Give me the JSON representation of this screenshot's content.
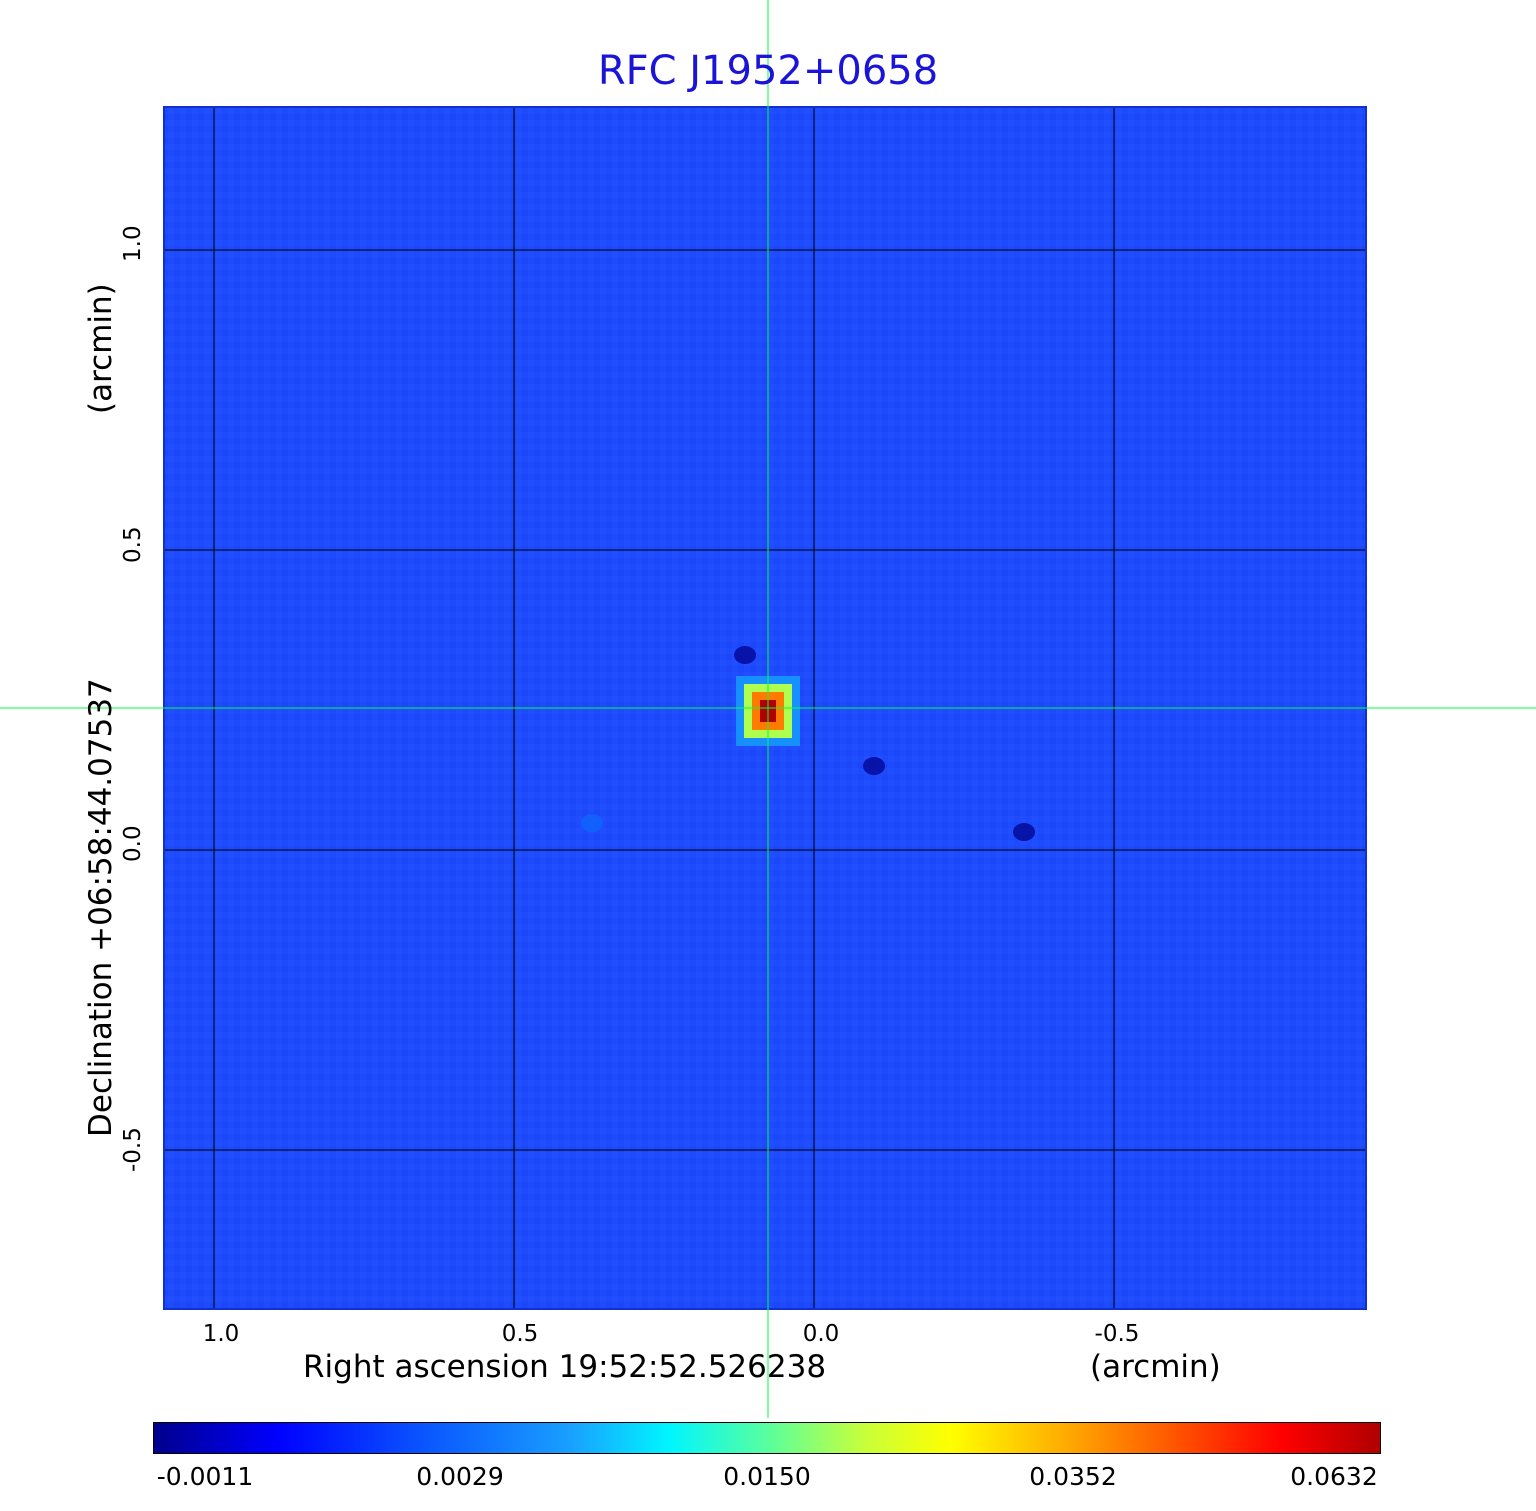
{
  "colors": {
    "background": "#1f4bff",
    "grid": "#000000",
    "crosshair": "#00ff40",
    "title": "#1a14d9"
  },
  "chart_data": {
    "type": "heatmap",
    "title": "RFC J1952+0658",
    "xlabel": "Right ascension  19:52:52.526238",
    "xlabel_unit": "(arcmin)",
    "ylabel": "Declination  +06:58:44.07537",
    "ylabel_unit": "(arcmin)",
    "x_ticks": [
      "1.0",
      "0.5",
      "0.0",
      "-0.5"
    ],
    "x_tick_values": [
      1.0,
      0.5,
      0.0,
      -0.5
    ],
    "y_ticks": [
      "1.0",
      "0.5",
      "0.0",
      "-0.5"
    ],
    "y_tick_values": [
      1.0,
      0.5,
      0.0,
      -0.5
    ],
    "xlim": [
      1.0817,
      -0.9183
    ],
    "ylim": [
      -0.7633,
      1.2367
    ],
    "grid": true,
    "crosshair": {
      "x": 0.0767,
      "y": 0.2367
    },
    "source_peak": {
      "x": 0.0767,
      "y": 0.2367,
      "value": 0.0632
    },
    "secondary_features": [
      {
        "x": 0.115,
        "y": 0.325,
        "value": -0.0011
      },
      {
        "x": 0.37,
        "y": 0.045,
        "value": 0.0029
      },
      {
        "x": -0.1,
        "y": 0.14,
        "value": -0.0011
      },
      {
        "x": -0.35,
        "y": 0.03,
        "value": -0.0011
      }
    ],
    "colorbar": {
      "ticks": [
        "-0.0011",
        "0.0029",
        "0.0150",
        "0.0352",
        "0.0632"
      ],
      "min": -0.0011,
      "max": 0.0632
    }
  }
}
